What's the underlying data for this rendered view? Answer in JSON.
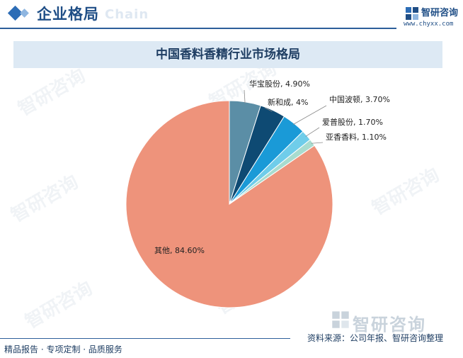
{
  "header": {
    "title": "企业格局",
    "watermark": "Chain"
  },
  "brand": {
    "name": "智研咨询",
    "url": "www.chyxx.com"
  },
  "chart_title": "中国香料香精行业市场格局",
  "colors": {
    "accent": "#2d6db6",
    "title_bg": "#dde9f4",
    "text": "#1f3e63"
  },
  "chart_data": {
    "type": "pie",
    "title": "中国香料香精行业市场格局",
    "unit": "%",
    "slices": [
      {
        "label": "华宝股份",
        "value": 4.9,
        "display": "华宝股份, 4.90%",
        "color": "#5b8ea6"
      },
      {
        "label": "新和成",
        "value": 4.0,
        "display": "新和成, 4%",
        "color": "#0e4a73"
      },
      {
        "label": "中国波顿",
        "value": 3.7,
        "display": "中国波顿, 3.70%",
        "color": "#1a9ad7"
      },
      {
        "label": "爱普股份",
        "value": 1.7,
        "display": "爱普股份, 1.70%",
        "color": "#6fcdea"
      },
      {
        "label": "亚香香料",
        "value": 1.1,
        "display": "亚香香料, 1.10%",
        "color": "#a8dccf"
      },
      {
        "label": "其他",
        "value": 84.6,
        "display": "其他, 84.60%",
        "color": "#ee937b"
      }
    ]
  },
  "footer": {
    "left": "精品报告 · 专项定制 · 品质服务",
    "source": "资料来源：公司年报、智研咨询整理",
    "brand_watermark": "智研咨询"
  },
  "watermarks": [
    "智研咨询",
    "智研咨询",
    "智研咨询",
    "智研咨询",
    "智研咨询",
    "智研咨询"
  ]
}
